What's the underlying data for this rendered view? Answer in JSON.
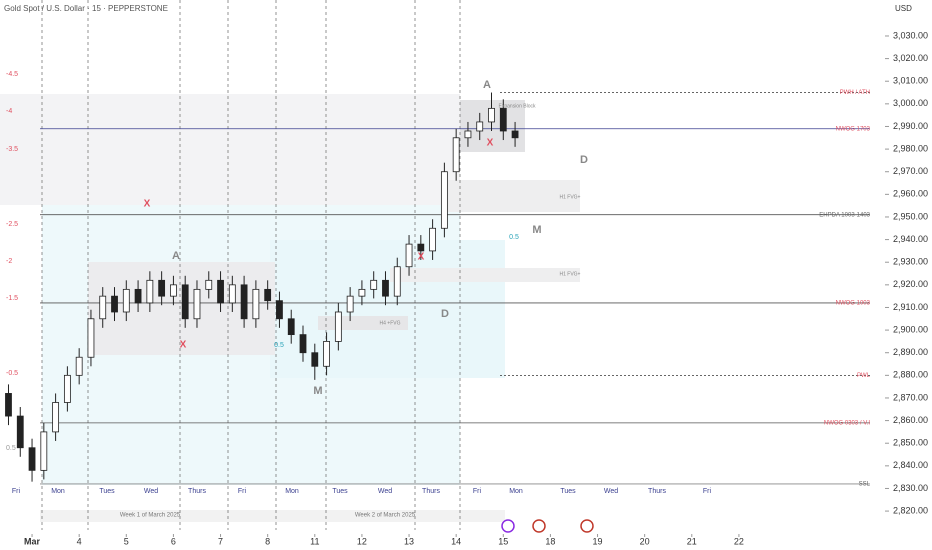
{
  "chart_data": {
    "type": "candlestick",
    "title": "Gold Spot / U.S. Dollar · 15 · PEPPERSTONE",
    "currency": "USD",
    "x": [
      -0.5,
      -0.25,
      0,
      0.25,
      0.5,
      0.75,
      1,
      1.25,
      1.5,
      1.75,
      2,
      2.25,
      2.5,
      2.75,
      3,
      3.25,
      3.5,
      3.75,
      4,
      4.25,
      4.5,
      4.75,
      5,
      5.25,
      5.5,
      5.75,
      6,
      6.25,
      6.5,
      6.75,
      7,
      7.25,
      7.5,
      7.75,
      8,
      8.25,
      8.5,
      8.75,
      9,
      9.25,
      9.5,
      9.75,
      10,
      10.25
    ],
    "open": [
      2872,
      2862,
      2848,
      2838,
      2855,
      2868,
      2880,
      2888,
      2905,
      2915,
      2908,
      2918,
      2912,
      2922,
      2915,
      2920,
      2905,
      2918,
      2922,
      2912,
      2920,
      2905,
      2918,
      2913,
      2905,
      2898,
      2890,
      2884,
      2895,
      2908,
      2915,
      2918,
      2922,
      2915,
      2928,
      2938,
      2935,
      2945,
      2970,
      2985,
      2988,
      2992,
      2998,
      2988
    ],
    "high": [
      2876,
      2866,
      2852,
      2859,
      2872,
      2884,
      2892,
      2909,
      2919,
      2919,
      2922,
      2922,
      2926,
      2926,
      2924,
      2924,
      2922,
      2926,
      2926,
      2924,
      2924,
      2922,
      2922,
      2917,
      2909,
      2902,
      2894,
      2899,
      2912,
      2919,
      2922,
      2926,
      2926,
      2932,
      2942,
      2942,
      2949,
      2974,
      2989,
      2992,
      2996,
      3005,
      3002,
      2992
    ],
    "low": [
      2858,
      2844,
      2833,
      2834,
      2851,
      2864,
      2876,
      2884,
      2901,
      2904,
      2904,
      2908,
      2908,
      2911,
      2911,
      2901,
      2901,
      2914,
      2908,
      2908,
      2901,
      2901,
      2909,
      2901,
      2894,
      2886,
      2878,
      2880,
      2891,
      2904,
      2911,
      2914,
      2911,
      2911,
      2924,
      2931,
      2931,
      2941,
      2966,
      2981,
      2984,
      2988,
      2984,
      2981
    ],
    "close": [
      2862,
      2848,
      2838,
      2855,
      2868,
      2880,
      2888,
      2905,
      2915,
      2908,
      2918,
      2912,
      2922,
      2915,
      2920,
      2905,
      2918,
      2922,
      2912,
      2920,
      2905,
      2918,
      2913,
      2905,
      2898,
      2890,
      2884,
      2895,
      2908,
      2915,
      2918,
      2922,
      2915,
      2928,
      2938,
      2935,
      2945,
      2970,
      2985,
      2988,
      2992,
      2998,
      2988,
      2985
    ],
    "xlim": [
      -0.68,
      18.1
    ],
    "xticks": [
      {
        "value": 0,
        "label": "Mar"
      },
      {
        "value": 1,
        "label": "4"
      },
      {
        "value": 2,
        "label": "5"
      },
      {
        "value": 3,
        "label": "6"
      },
      {
        "value": 4,
        "label": "7"
      },
      {
        "value": 5,
        "label": "8"
      },
      {
        "value": 6,
        "label": "11"
      },
      {
        "value": 7,
        "label": "12"
      },
      {
        "value": 8,
        "label": "13"
      },
      {
        "value": 9,
        "label": "14"
      },
      {
        "value": 10,
        "label": "15"
      },
      {
        "value": 11,
        "label": "18"
      },
      {
        "value": 12,
        "label": "19"
      },
      {
        "value": 13,
        "label": "20"
      },
      {
        "value": 14,
        "label": "21"
      },
      {
        "value": 15,
        "label": "22"
      }
    ],
    "ylim": [
      2802.8,
      3045.9
    ],
    "yticks": [
      {
        "value": 2820,
        "label": "2,820.00"
      },
      {
        "value": 2830,
        "label": "2,830.00"
      },
      {
        "value": 2840,
        "label": "2,840.00"
      },
      {
        "value": 2850,
        "label": "2,850.00"
      },
      {
        "value": 2860,
        "label": "2,860.00"
      },
      {
        "value": 2870,
        "label": "2,870.00"
      },
      {
        "value": 2880,
        "label": "2,880.00"
      },
      {
        "value": 2890,
        "label": "2,890.00"
      },
      {
        "value": 2900,
        "label": "2,900.00"
      },
      {
        "value": 2910,
        "label": "2,910.00"
      },
      {
        "value": 2920,
        "label": "2,920.00"
      },
      {
        "value": 2930,
        "label": "2,930.00"
      },
      {
        "value": 2940,
        "label": "2,940.00"
      },
      {
        "value": 2950,
        "label": "2,950.00"
      },
      {
        "value": 2960,
        "label": "2,960.00"
      },
      {
        "value": 2970,
        "label": "2,970.00"
      },
      {
        "value": 2980,
        "label": "2,980.00"
      },
      {
        "value": 2990,
        "label": "2,990.00"
      },
      {
        "value": 3000,
        "label": "3,000.00"
      },
      {
        "value": 3010,
        "label": "3,010.00"
      },
      {
        "value": 3020,
        "label": "3,020.00"
      },
      {
        "value": 3030,
        "label": "3,030.00"
      }
    ],
    "weekdays": [
      "Fri",
      "Mon",
      "Tues",
      "Wed",
      "Thurs",
      "Fri",
      "Mon",
      "Tues",
      "Wed",
      "Thurs",
      "Fri",
      "Mon",
      "Tues",
      "Wed",
      "Thurs",
      "Fri"
    ],
    "weeks": [
      "Week 1 of March 2025",
      "Week 2 of March 2025"
    ],
    "levels": [
      {
        "label": "PWH / ATH",
        "value": 3005,
        "color": "#333333"
      },
      {
        "label": "NWOG 1703",
        "value": 2989,
        "color": "#3a3f8f"
      },
      {
        "label": "EHPDA 1003-1403",
        "value": 2951,
        "color": "#555555"
      },
      {
        "label": "NWOG 1003",
        "value": 2912,
        "color": "#555555"
      },
      {
        "label": "PWL",
        "value": 2880,
        "color": "#333333"
      },
      {
        "label": "NWOG 0303 / V.I",
        "value": 2859,
        "color": "#555555"
      },
      {
        "label": "SSL",
        "value": 2832,
        "color": "#888888"
      }
    ],
    "fib_labels": [
      "-4.5",
      "-4",
      "-3.5",
      "-2.5",
      "-2",
      "-1.5",
      "-0.5",
      "0.5"
    ],
    "annotations": [
      "A",
      "A",
      "D",
      "D",
      "M",
      "M",
      "X",
      "X",
      "X",
      "X"
    ],
    "box_labels": [
      "Expansion Block",
      "H1 FVG+",
      "H1 FVG+",
      "H4 +FVG",
      "0.5",
      "0.5"
    ]
  }
}
